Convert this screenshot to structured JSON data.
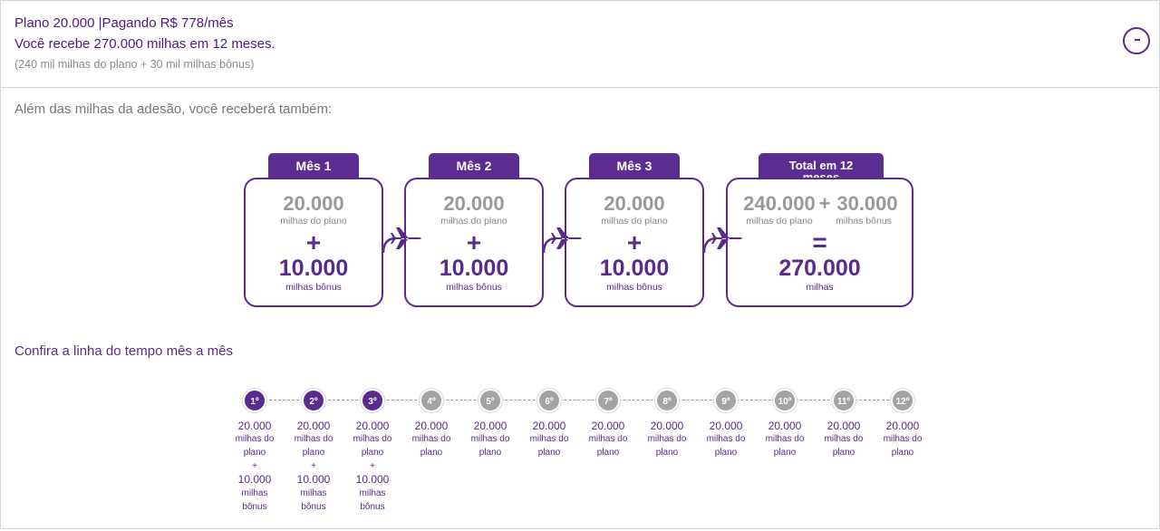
{
  "header": {
    "line1": "Plano 20.000 |Pagando R$ 778/mês",
    "line2": "Você recebe 270.000 milhas em 12 meses.",
    "line3": "(240 mil milhas do plano + 30 mil milhas bônus)",
    "collapse_label": "-"
  },
  "intro": "Além das milhas da adesão, você receberá também:",
  "cards": [
    {
      "tab": "Mês 1",
      "plan_amount": "20.000",
      "plan_label": "milhas do plano",
      "op": "+",
      "bonus_amount": "10.000",
      "bonus_label": "milhas bônus"
    },
    {
      "tab": "Mês 2",
      "plan_amount": "20.000",
      "plan_label": "milhas do plano",
      "op": "+",
      "bonus_amount": "10.000",
      "bonus_label": "milhas bônus"
    },
    {
      "tab": "Mês 3",
      "plan_amount": "20.000",
      "plan_label": "milhas do plano",
      "op": "+",
      "bonus_amount": "10.000",
      "bonus_label": "milhas bônus"
    }
  ],
  "total_card": {
    "tab_line1": "Total em 12",
    "tab_line2": "meses",
    "plan_amount": "240.000",
    "plus": "+",
    "bonus_amount": "30.000",
    "plan_label": "milhas do plano",
    "bonus_label": "milhas bônus",
    "op": "=",
    "total_amount": "270.000",
    "total_label": "milhas"
  },
  "timeline_title": "Confira a linha do tempo mês a mês",
  "timeline": [
    {
      "label": "1º",
      "active": true,
      "amount": "20.000",
      "unit1": "milhas do",
      "unit2": "plano",
      "plus": "+",
      "bonus": "10.000",
      "bonus1": "milhas",
      "bonus2": "bônus"
    },
    {
      "label": "2º",
      "active": true,
      "amount": "20.000",
      "unit1": "milhas do",
      "unit2": "plano",
      "plus": "+",
      "bonus": "10.000",
      "bonus1": "milhas",
      "bonus2": "bônus"
    },
    {
      "label": "3º",
      "active": true,
      "amount": "20.000",
      "unit1": "milhas do",
      "unit2": "plano",
      "plus": "+",
      "bonus": "10.000",
      "bonus1": "milhas",
      "bonus2": "bônus"
    },
    {
      "label": "4º",
      "active": false,
      "amount": "20.000",
      "unit1": "milhas do",
      "unit2": "plano"
    },
    {
      "label": "5º",
      "active": false,
      "amount": "20.000",
      "unit1": "milhas do",
      "unit2": "plano"
    },
    {
      "label": "6º",
      "active": false,
      "amount": "20.000",
      "unit1": "milhas do",
      "unit2": "plano"
    },
    {
      "label": "7º",
      "active": false,
      "amount": "20.000",
      "unit1": "milhas do",
      "unit2": "plano"
    },
    {
      "label": "8º",
      "active": false,
      "amount": "20.000",
      "unit1": "milhas do",
      "unit2": "plano"
    },
    {
      "label": "9º",
      "active": false,
      "amount": "20.000",
      "unit1": "milhas do",
      "unit2": "plano"
    },
    {
      "label": "10º",
      "active": false,
      "amount": "20.000",
      "unit1": "milhas do",
      "unit2": "plano"
    },
    {
      "label": "11º",
      "active": false,
      "amount": "20.000",
      "unit1": "milhas do",
      "unit2": "plano"
    },
    {
      "label": "12º",
      "active": false,
      "amount": "20.000",
      "unit1": "milhas do",
      "unit2": "plano"
    }
  ],
  "colors": {
    "brand_purple": "#5a2a8c",
    "inactive_grey": "#a3a3a3"
  }
}
